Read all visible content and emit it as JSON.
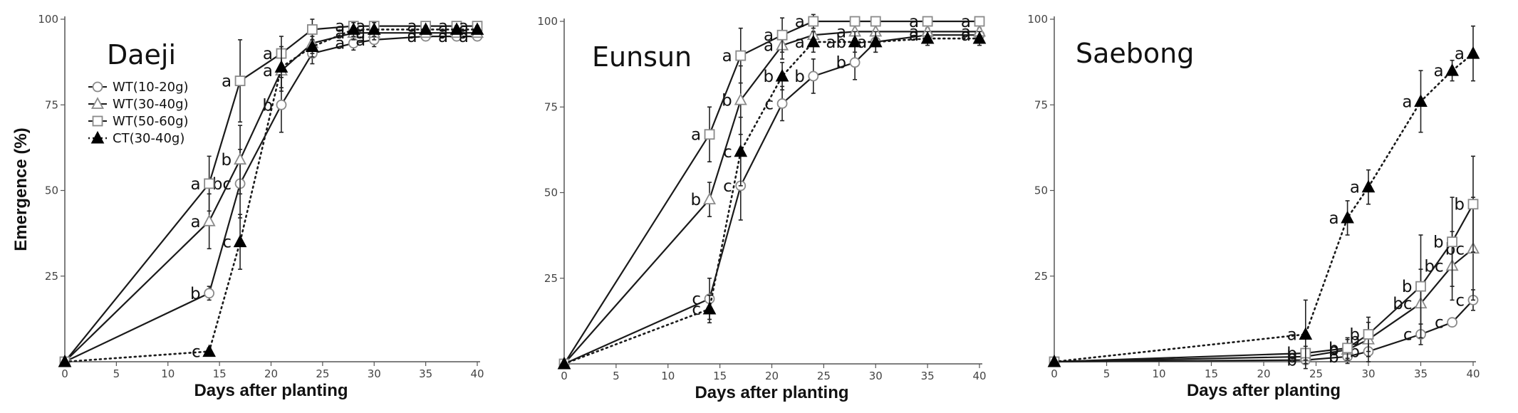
{
  "y_axis_title": "Emergence (%)",
  "legend": [
    {
      "label": "WT(10-20g)",
      "marker": "circle",
      "line": "solid"
    },
    {
      "label": "WT(30-40g)",
      "marker": "triangle-open",
      "line": "solid"
    },
    {
      "label": "WT(50-60g)",
      "marker": "square",
      "line": "solid"
    },
    {
      "label": "CT(30-40g)",
      "marker": "triangle-filled",
      "line": "dotted"
    }
  ],
  "colors": {
    "line": "#1a1a1a",
    "open_marker_stroke": "#8a8a8a",
    "error_bar": "#222222"
  },
  "chart_data": [
    {
      "type": "line",
      "title": "Daeji",
      "xlabel": "Days after planting",
      "ylabel": "Emergence (%)",
      "xlim": [
        0,
        40
      ],
      "ylim": [
        0,
        100
      ],
      "xticks": [
        0,
        5,
        10,
        15,
        20,
        25,
        30,
        35,
        40
      ],
      "yticks": [
        25,
        50,
        75,
        100
      ],
      "legend_position": "upper-left",
      "series": [
        {
          "name": "WT(10-20g)",
          "x": [
            0,
            14,
            17,
            21,
            24,
            28,
            30,
            35,
            38,
            40
          ],
          "y": [
            0,
            20,
            52,
            75,
            90,
            93,
            94,
            95,
            95,
            95
          ],
          "err": [
            0,
            2,
            10,
            8,
            3,
            2,
            2,
            1,
            1,
            1
          ],
          "labels": [
            "",
            "b",
            "bc",
            "b",
            "",
            "a",
            "a",
            "a",
            "a",
            "a"
          ]
        },
        {
          "name": "WT(30-40g)",
          "x": [
            0,
            14,
            17,
            21,
            24,
            28,
            30,
            35,
            38,
            40
          ],
          "y": [
            0,
            41,
            59,
            85,
            93,
            96,
            96,
            96,
            96,
            96
          ],
          "err": [
            0,
            8,
            10,
            6,
            3,
            2,
            2,
            1,
            1,
            1
          ],
          "labels": [
            "",
            "a",
            "b",
            "a",
            "",
            "a",
            "a",
            "a",
            "a",
            "a"
          ]
        },
        {
          "name": "WT(50-60g)",
          "x": [
            0,
            14,
            17,
            21,
            24,
            28,
            30,
            35,
            38,
            40
          ],
          "y": [
            0,
            52,
            82,
            90,
            97,
            98,
            98,
            98,
            98,
            98
          ],
          "err": [
            0,
            8,
            12,
            5,
            3,
            1,
            1,
            1,
            1,
            1
          ],
          "labels": [
            "",
            "a",
            "a",
            "a",
            "",
            "a",
            "a",
            "a",
            "a",
            "a"
          ]
        },
        {
          "name": "CT(30-40g)",
          "x": [
            0,
            14,
            17,
            21,
            24,
            28,
            30,
            35,
            38,
            40
          ],
          "y": [
            0,
            3,
            35,
            86,
            92,
            97,
            97,
            97,
            97,
            97
          ],
          "err": [
            0,
            1,
            8,
            6,
            3,
            2,
            2,
            1,
            1,
            1
          ],
          "labels": [
            "",
            "c",
            "c",
            "",
            "",
            "",
            "",
            "",
            "",
            ""
          ]
        }
      ]
    },
    {
      "type": "line",
      "title": "Eunsun",
      "xlabel": "Days after planting",
      "ylabel": "",
      "xlim": [
        0,
        40
      ],
      "ylim": [
        0,
        100
      ],
      "xticks": [
        0,
        5,
        10,
        15,
        20,
        25,
        30,
        35,
        40
      ],
      "yticks": [
        25,
        50,
        75,
        100
      ],
      "legend_position": "none",
      "series": [
        {
          "name": "WT(10-20g)",
          "x": [
            0,
            14,
            17,
            21,
            24,
            28,
            30,
            35,
            40
          ],
          "y": [
            0,
            19,
            52,
            76,
            84,
            88,
            94,
            96,
            96
          ],
          "err": [
            0,
            6,
            10,
            5,
            5,
            5,
            3,
            2,
            2
          ],
          "labels": [
            "",
            "c",
            "c",
            "c",
            "b",
            "b",
            "",
            "a",
            "a"
          ]
        },
        {
          "name": "WT(30-40g)",
          "x": [
            0,
            14,
            17,
            21,
            24,
            28,
            30,
            35,
            40
          ],
          "y": [
            0,
            48,
            77,
            93,
            96,
            97,
            97,
            97,
            97
          ],
          "err": [
            0,
            5,
            10,
            4,
            3,
            2,
            2,
            1,
            1
          ],
          "labels": [
            "",
            "b",
            "b",
            "a",
            "",
            "a",
            "",
            "a",
            "a"
          ]
        },
        {
          "name": "WT(50-60g)",
          "x": [
            0,
            14,
            17,
            21,
            24,
            28,
            30,
            35,
            40
          ],
          "y": [
            0,
            67,
            90,
            96,
            100,
            100,
            100,
            100,
            100
          ],
          "err": [
            0,
            8,
            8,
            5,
            2,
            1,
            1,
            1,
            1
          ],
          "labels": [
            "",
            "a",
            "a",
            "a",
            "a",
            "",
            "",
            "a",
            "a"
          ]
        },
        {
          "name": "CT(30-40g)",
          "x": [
            0,
            14,
            17,
            21,
            24,
            28,
            30,
            35,
            40
          ],
          "y": [
            0,
            16,
            62,
            84,
            94,
            94,
            94,
            95,
            95
          ],
          "err": [
            0,
            4,
            10,
            4,
            3,
            3,
            3,
            2,
            2
          ],
          "labels": [
            "",
            "c",
            "c",
            "b",
            "a",
            "ab",
            "a",
            "",
            ""
          ]
        }
      ]
    },
    {
      "type": "line",
      "title": "Saebong",
      "xlabel": "Days after planting",
      "ylabel": "",
      "xlim": [
        0,
        40
      ],
      "ylim": [
        0,
        100
      ],
      "xticks": [
        0,
        5,
        10,
        15,
        20,
        25,
        30,
        35,
        40
      ],
      "yticks": [
        25,
        50,
        75,
        100
      ],
      "legend_position": "none",
      "series": [
        {
          "name": "WT(10-20g)",
          "x": [
            0,
            24,
            28,
            30,
            35,
            38,
            40
          ],
          "y": [
            0,
            0.5,
            1.5,
            3,
            8,
            11.5,
            18
          ],
          "err": [
            0,
            1,
            2,
            3,
            3,
            1,
            3
          ],
          "labels": [
            "",
            "b",
            "b",
            "b",
            "c",
            "c",
            "c"
          ]
        },
        {
          "name": "WT(30-40g)",
          "x": [
            0,
            24,
            28,
            30,
            35,
            38,
            40
          ],
          "y": [
            0,
            1.5,
            3.5,
            6.5,
            17,
            28,
            33
          ],
          "err": [
            0,
            2,
            3,
            5,
            10,
            10,
            15
          ],
          "labels": [
            "",
            "b",
            "b",
            "b",
            "bc",
            "bc",
            "bc"
          ]
        },
        {
          "name": "WT(50-60g)",
          "x": [
            0,
            24,
            28,
            30,
            35,
            38,
            40
          ],
          "y": [
            0,
            2.5,
            4,
            8,
            22,
            35,
            46
          ],
          "err": [
            0,
            2,
            3,
            5,
            15,
            13,
            14
          ],
          "labels": [
            "",
            "b",
            "b",
            "b",
            "b",
            "b",
            "b"
          ]
        },
        {
          "name": "CT(30-40g)",
          "x": [
            0,
            24,
            28,
            30,
            35,
            38,
            40
          ],
          "y": [
            0,
            8,
            42,
            51,
            76,
            85,
            90
          ],
          "err": [
            0,
            10,
            5,
            5,
            9,
            3,
            8
          ],
          "labels": [
            "",
            "a",
            "a",
            "a",
            "a",
            "a",
            "a"
          ]
        }
      ]
    }
  ]
}
